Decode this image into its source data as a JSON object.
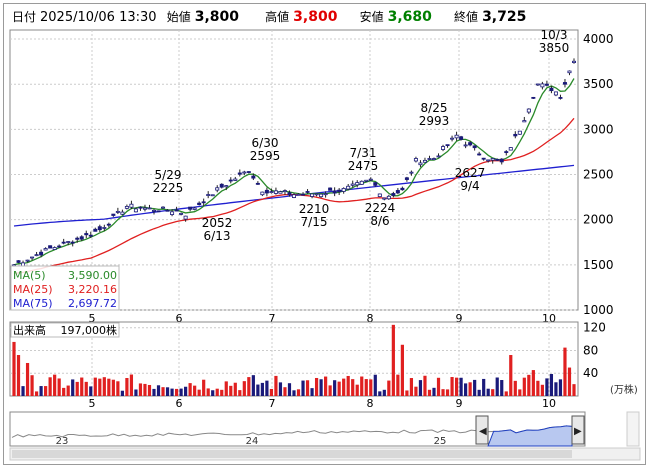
{
  "header": {
    "date_label": "日付",
    "datetime": "2025/10/06 13:30",
    "open_label": "始値",
    "open": "3,800",
    "high_label": "高値",
    "high": "3,800",
    "low_label": "安値",
    "low": "3,680",
    "close_label": "終値",
    "close": "3,725",
    "colors": {
      "high": "#e00000",
      "low": "#008000",
      "text": "#000000"
    }
  },
  "price_chart": {
    "type": "candlestick",
    "y_ticks": [
      "4000",
      "3500",
      "3000",
      "2500",
      "2000",
      "1500",
      "1000"
    ],
    "x_ticks": [
      "5",
      "6",
      "7",
      "8",
      "9",
      "10"
    ],
    "legend": [
      {
        "label": "MA(5)",
        "value": "3,590.00",
        "color": "#2a8a2a"
      },
      {
        "label": "MA(25)",
        "value": "3,220.16",
        "color": "#e02020"
      },
      {
        "label": "MA(75)",
        "value": "2,697.72",
        "color": "#2020d0"
      }
    ],
    "annotations": [
      {
        "date": "5/29",
        "price": "2225"
      },
      {
        "date": "6/13",
        "price": "2052"
      },
      {
        "date": "6/30",
        "price": "2595"
      },
      {
        "date": "7/15",
        "price": "2210"
      },
      {
        "date": "7/31",
        "price": "2475"
      },
      {
        "date": "8/6",
        "price": "2224"
      },
      {
        "date": "8/25",
        "price": "2993"
      },
      {
        "date": "9/4",
        "price": "2627"
      },
      {
        "date": "10/3",
        "price": "3850"
      }
    ]
  },
  "volume_chart": {
    "label": "出来高",
    "value": "197,000株",
    "y_ticks": [
      "120",
      "80",
      "40"
    ],
    "unit": "(万株)",
    "x_ticks": [
      "5",
      "6",
      "7",
      "8",
      "9",
      "10"
    ]
  },
  "navigator": {
    "labels": [
      "23",
      "24",
      "25"
    ]
  },
  "chart_data": {
    "type": "candlestick",
    "ylim": [
      1000,
      4100
    ],
    "annotated_points": [
      {
        "date": "5/29",
        "value": 2225
      },
      {
        "date": "6/13",
        "value": 2052
      },
      {
        "date": "6/30",
        "value": 2595
      },
      {
        "date": "7/15",
        "value": 2210
      },
      {
        "date": "7/31",
        "value": 2475
      },
      {
        "date": "8/6",
        "value": 2224
      },
      {
        "date": "8/25",
        "value": 2993
      },
      {
        "date": "9/4",
        "value": 2627
      },
      {
        "date": "10/3",
        "value": 3850
      }
    ],
    "series": [
      {
        "name": "MA(5)",
        "last": 3590.0
      },
      {
        "name": "MA(25)",
        "last": 3220.16
      },
      {
        "name": "MA(75)",
        "last": 2697.72
      }
    ],
    "volume_ylim": [
      0,
      130
    ]
  }
}
